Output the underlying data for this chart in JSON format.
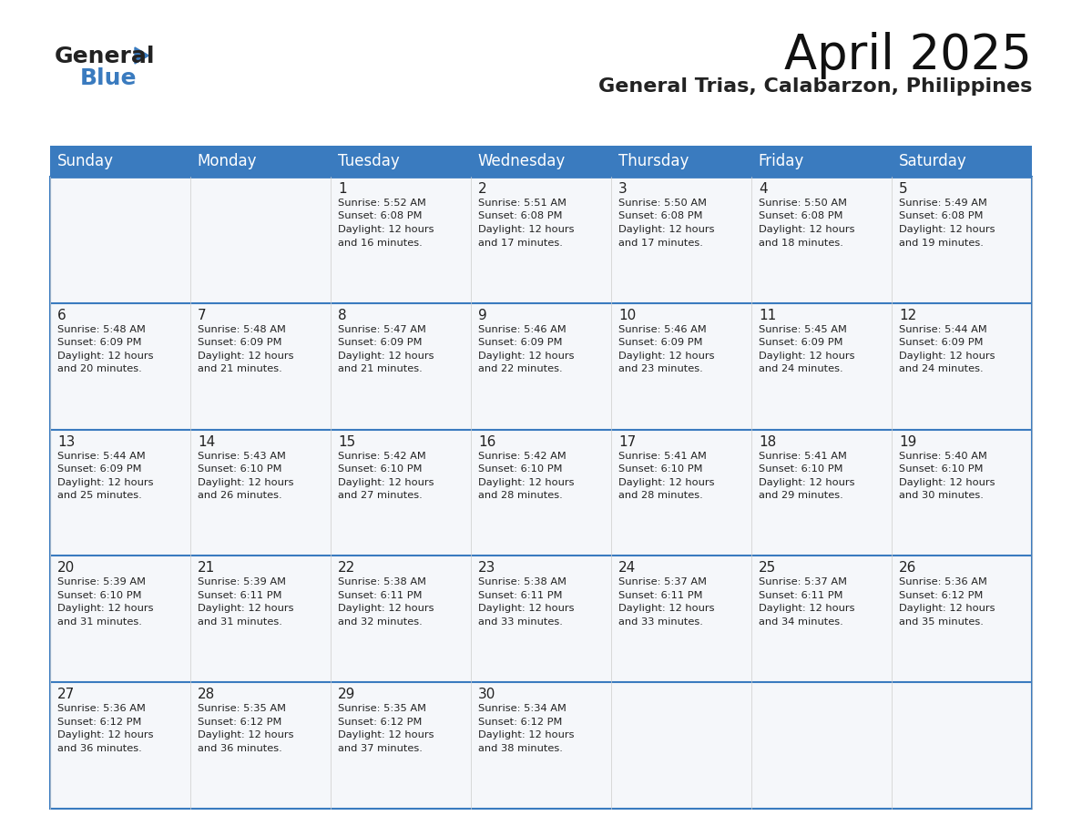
{
  "title": "April 2025",
  "subtitle": "General Trias, Calabarzon, Philippines",
  "header_color": "#3a7bbf",
  "header_text_color": "#ffffff",
  "cell_bg_color": "#f0f4f8",
  "cell_bg_alt": "#ffffff",
  "border_color": "#3a7bbf",
  "text_color": "#222222",
  "days_of_week": [
    "Sunday",
    "Monday",
    "Tuesday",
    "Wednesday",
    "Thursday",
    "Friday",
    "Saturday"
  ],
  "calendar_data": [
    [
      {
        "day": "",
        "sunrise": "",
        "sunset": "",
        "daylight": ""
      },
      {
        "day": "",
        "sunrise": "",
        "sunset": "",
        "daylight": ""
      },
      {
        "day": "1",
        "sunrise": "5:52 AM",
        "sunset": "6:08 PM",
        "daylight": "12 hours and 16 minutes."
      },
      {
        "day": "2",
        "sunrise": "5:51 AM",
        "sunset": "6:08 PM",
        "daylight": "12 hours and 17 minutes."
      },
      {
        "day": "3",
        "sunrise": "5:50 AM",
        "sunset": "6:08 PM",
        "daylight": "12 hours and 17 minutes."
      },
      {
        "day": "4",
        "sunrise": "5:50 AM",
        "sunset": "6:08 PM",
        "daylight": "12 hours and 18 minutes."
      },
      {
        "day": "5",
        "sunrise": "5:49 AM",
        "sunset": "6:08 PM",
        "daylight": "12 hours and 19 minutes."
      }
    ],
    [
      {
        "day": "6",
        "sunrise": "5:48 AM",
        "sunset": "6:09 PM",
        "daylight": "12 hours and 20 minutes."
      },
      {
        "day": "7",
        "sunrise": "5:48 AM",
        "sunset": "6:09 PM",
        "daylight": "12 hours and 21 minutes."
      },
      {
        "day": "8",
        "sunrise": "5:47 AM",
        "sunset": "6:09 PM",
        "daylight": "12 hours and 21 minutes."
      },
      {
        "day": "9",
        "sunrise": "5:46 AM",
        "sunset": "6:09 PM",
        "daylight": "12 hours and 22 minutes."
      },
      {
        "day": "10",
        "sunrise": "5:46 AM",
        "sunset": "6:09 PM",
        "daylight": "12 hours and 23 minutes."
      },
      {
        "day": "11",
        "sunrise": "5:45 AM",
        "sunset": "6:09 PM",
        "daylight": "12 hours and 24 minutes."
      },
      {
        "day": "12",
        "sunrise": "5:44 AM",
        "sunset": "6:09 PM",
        "daylight": "12 hours and 24 minutes."
      }
    ],
    [
      {
        "day": "13",
        "sunrise": "5:44 AM",
        "sunset": "6:09 PM",
        "daylight": "12 hours and 25 minutes."
      },
      {
        "day": "14",
        "sunrise": "5:43 AM",
        "sunset": "6:10 PM",
        "daylight": "12 hours and 26 minutes."
      },
      {
        "day": "15",
        "sunrise": "5:42 AM",
        "sunset": "6:10 PM",
        "daylight": "12 hours and 27 minutes."
      },
      {
        "day": "16",
        "sunrise": "5:42 AM",
        "sunset": "6:10 PM",
        "daylight": "12 hours and 28 minutes."
      },
      {
        "day": "17",
        "sunrise": "5:41 AM",
        "sunset": "6:10 PM",
        "daylight": "12 hours and 28 minutes."
      },
      {
        "day": "18",
        "sunrise": "5:41 AM",
        "sunset": "6:10 PM",
        "daylight": "12 hours and 29 minutes."
      },
      {
        "day": "19",
        "sunrise": "5:40 AM",
        "sunset": "6:10 PM",
        "daylight": "12 hours and 30 minutes."
      }
    ],
    [
      {
        "day": "20",
        "sunrise": "5:39 AM",
        "sunset": "6:10 PM",
        "daylight": "12 hours and 31 minutes."
      },
      {
        "day": "21",
        "sunrise": "5:39 AM",
        "sunset": "6:11 PM",
        "daylight": "12 hours and 31 minutes."
      },
      {
        "day": "22",
        "sunrise": "5:38 AM",
        "sunset": "6:11 PM",
        "daylight": "12 hours and 32 minutes."
      },
      {
        "day": "23",
        "sunrise": "5:38 AM",
        "sunset": "6:11 PM",
        "daylight": "12 hours and 33 minutes."
      },
      {
        "day": "24",
        "sunrise": "5:37 AM",
        "sunset": "6:11 PM",
        "daylight": "12 hours and 33 minutes."
      },
      {
        "day": "25",
        "sunrise": "5:37 AM",
        "sunset": "6:11 PM",
        "daylight": "12 hours and 34 minutes."
      },
      {
        "day": "26",
        "sunrise": "5:36 AM",
        "sunset": "6:12 PM",
        "daylight": "12 hours and 35 minutes."
      }
    ],
    [
      {
        "day": "27",
        "sunrise": "5:36 AM",
        "sunset": "6:12 PM",
        "daylight": "12 hours and 36 minutes."
      },
      {
        "day": "28",
        "sunrise": "5:35 AM",
        "sunset": "6:12 PM",
        "daylight": "12 hours and 36 minutes."
      },
      {
        "day": "29",
        "sunrise": "5:35 AM",
        "sunset": "6:12 PM",
        "daylight": "12 hours and 37 minutes."
      },
      {
        "day": "30",
        "sunrise": "5:34 AM",
        "sunset": "6:12 PM",
        "daylight": "12 hours and 38 minutes."
      },
      {
        "day": "",
        "sunrise": "",
        "sunset": "",
        "daylight": ""
      },
      {
        "day": "",
        "sunrise": "",
        "sunset": "",
        "daylight": ""
      },
      {
        "day": "",
        "sunrise": "",
        "sunset": "",
        "daylight": ""
      }
    ]
  ],
  "logo_text1": "General",
  "logo_text2": "Blue",
  "logo_color1": "#222222",
  "logo_color2": "#3a7bbf",
  "logo_triangle_color": "#3a7bbf"
}
